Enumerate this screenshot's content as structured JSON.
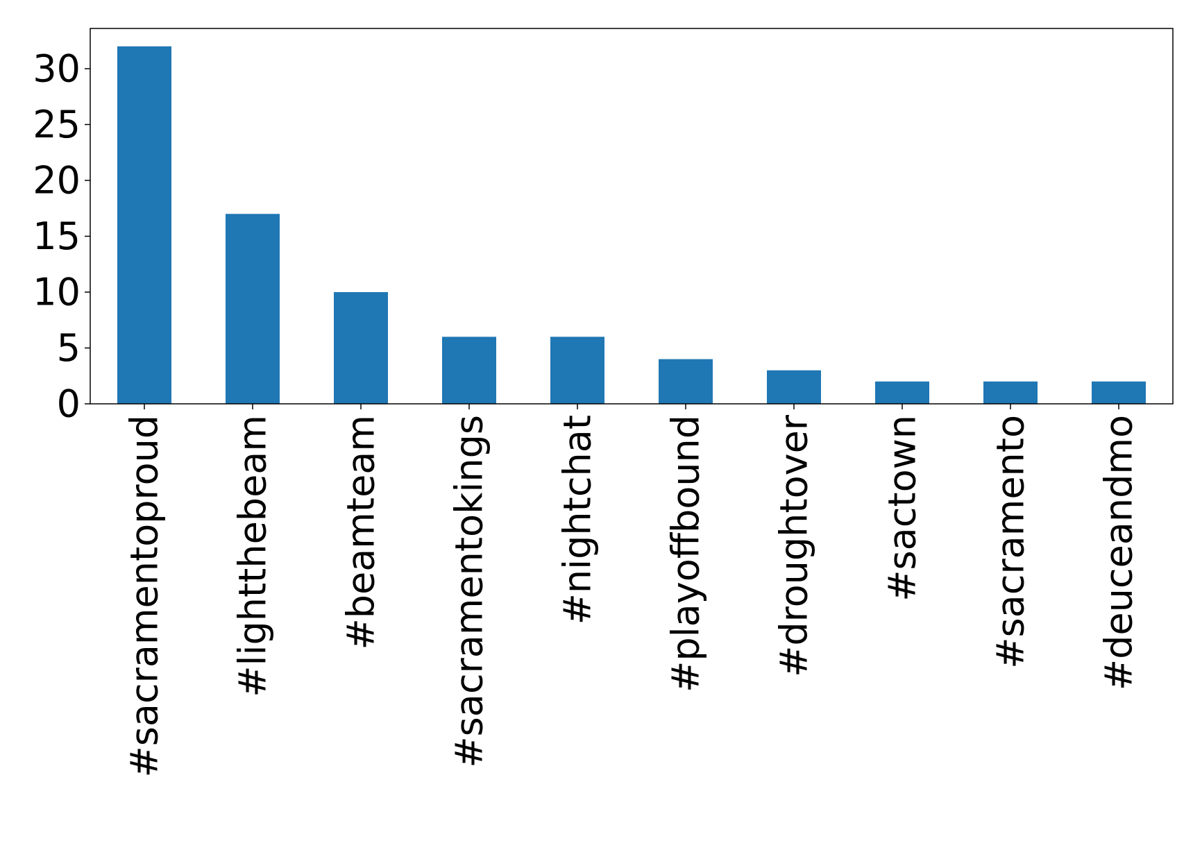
{
  "chart_data": {
    "type": "bar",
    "title": "",
    "xlabel": "",
    "ylabel": "",
    "categories": [
      "#sacramentoproud",
      "#lightthebeam",
      "#beamteam",
      "#sacramentokings",
      "#nightchat",
      "#playoffbound",
      "#droughtover",
      "#sactown",
      "#sacramento",
      "#deuceandmo"
    ],
    "values": [
      32,
      17,
      10,
      6,
      6,
      4,
      3,
      2,
      2,
      2
    ],
    "ylim": [
      0,
      33.6
    ],
    "yticks": [
      0,
      5,
      10,
      15,
      20,
      25,
      30
    ],
    "grid": false,
    "bar_color": "#1f77b4"
  }
}
